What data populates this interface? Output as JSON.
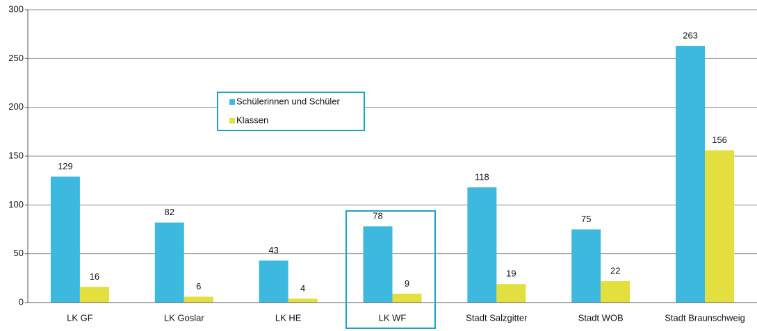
{
  "chart_data": {
    "type": "bar",
    "categories": [
      "LK GF",
      "LK Goslar",
      "LK HE",
      "LK WF",
      "Stadt Salzgitter",
      "Stadt WOB",
      "Stadt Braunschweig"
    ],
    "series": [
      {
        "name": "Schülerinnen und Schüler",
        "color": "#3db9e0",
        "values": [
          129,
          82,
          43,
          78,
          118,
          75,
          263
        ]
      },
      {
        "name": "Klassen",
        "color": "#e2df3e",
        "values": [
          16,
          6,
          4,
          9,
          19,
          22,
          156
        ]
      }
    ],
    "ylim": [
      0,
      300
    ],
    "yticks": [
      0,
      50,
      100,
      150,
      200,
      250,
      300
    ],
    "grid": true
  }
}
